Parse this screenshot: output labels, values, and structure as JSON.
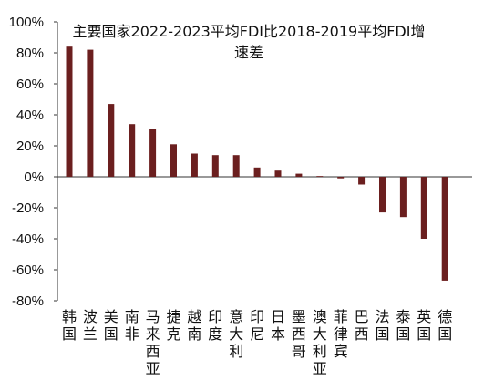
{
  "chart_data": {
    "type": "bar",
    "title_line1": "主要国家2022-2023平均FDI比2018-2019平均FDI增",
    "title_line2": "速差",
    "categories": [
      "韩国",
      "波兰",
      "美国",
      "南非",
      "马来西亚",
      "捷克",
      "越南",
      "印度",
      "意大利",
      "印尼",
      "日本",
      "墨西哥",
      "澳大利亚",
      "菲律宾",
      "巴西",
      "法国",
      "泰国",
      "英国",
      "德国"
    ],
    "values": [
      84,
      82,
      47,
      34,
      31,
      21,
      15,
      14,
      14,
      6,
      4,
      2,
      0.5,
      -1,
      -5,
      -23,
      -26,
      -40,
      -67
    ],
    "ylim": [
      -80,
      100
    ],
    "yticks": [
      "100%",
      "80%",
      "60%",
      "40%",
      "20%",
      "0%",
      "-20%",
      "-40%",
      "-60%",
      "-80%"
    ],
    "ytick_values": [
      100,
      80,
      60,
      40,
      20,
      0,
      -20,
      -40,
      -60,
      -80
    ],
    "bar_color": "#6b1f1f",
    "grid": false,
    "legend": "none"
  }
}
